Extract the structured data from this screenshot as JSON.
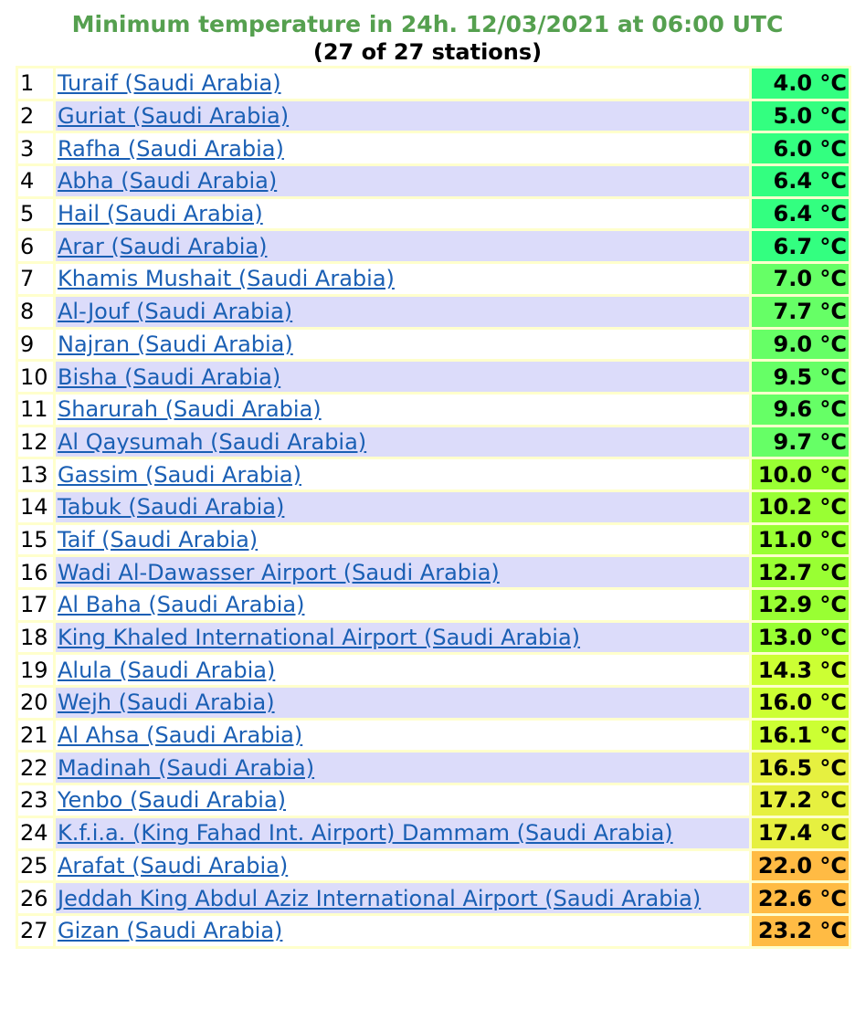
{
  "header": {
    "title": "Minimum temperature in 24h. 12/03/2021 at 06:00 UTC",
    "subtitle": "(27 of 27 stations)"
  },
  "rows": [
    {
      "rank": "1",
      "station": "Turaif (Saudi Arabia)",
      "value": "4.0 °C",
      "color": "#33ff80"
    },
    {
      "rank": "2",
      "station": "Guriat (Saudi Arabia)",
      "value": "5.0 °C",
      "color": "#33ff80"
    },
    {
      "rank": "3",
      "station": "Rafha (Saudi Arabia)",
      "value": "6.0 °C",
      "color": "#33ff80"
    },
    {
      "rank": "4",
      "station": "Abha (Saudi Arabia)",
      "value": "6.4 °C",
      "color": "#33ff80"
    },
    {
      "rank": "5",
      "station": "Hail (Saudi Arabia)",
      "value": "6.4 °C",
      "color": "#33ff80"
    },
    {
      "rank": "6",
      "station": "Arar (Saudi Arabia)",
      "value": "6.7 °C",
      "color": "#33ff80"
    },
    {
      "rank": "7",
      "station": "Khamis Mushait (Saudi Arabia)",
      "value": "7.0 °C",
      "color": "#66ff66"
    },
    {
      "rank": "8",
      "station": "Al-Jouf (Saudi Arabia)",
      "value": "7.7 °C",
      "color": "#66ff66"
    },
    {
      "rank": "9",
      "station": "Najran (Saudi Arabia)",
      "value": "9.0 °C",
      "color": "#66ff66"
    },
    {
      "rank": "10",
      "station": "Bisha (Saudi Arabia)",
      "value": "9.5 °C",
      "color": "#66ff66"
    },
    {
      "rank": "11",
      "station": "Sharurah (Saudi Arabia)",
      "value": "9.6 °C",
      "color": "#66ff66"
    },
    {
      "rank": "12",
      "station": "Al Qaysumah (Saudi Arabia)",
      "value": "9.7 °C",
      "color": "#66ff66"
    },
    {
      "rank": "13",
      "station": "Gassim (Saudi Arabia)",
      "value": "10.0 °C",
      "color": "#99ff33"
    },
    {
      "rank": "14",
      "station": "Tabuk (Saudi Arabia)",
      "value": "10.2 °C",
      "color": "#99ff33"
    },
    {
      "rank": "15",
      "station": "Taif (Saudi Arabia)",
      "value": "11.0 °C",
      "color": "#99ff33"
    },
    {
      "rank": "16",
      "station": "Wadi Al-Dawasser Airport (Saudi Arabia)",
      "value": "12.7 °C",
      "color": "#99ff33"
    },
    {
      "rank": "17",
      "station": "Al Baha (Saudi Arabia)",
      "value": "12.9 °C",
      "color": "#99ff33"
    },
    {
      "rank": "18",
      "station": "King Khaled International Airport (Saudi Arabia)",
      "value": "13.0 °C",
      "color": "#99ff33"
    },
    {
      "rank": "19",
      "station": "Alula (Saudi Arabia)",
      "value": "14.3 °C",
      "color": "#ccff33"
    },
    {
      "rank": "20",
      "station": "Wejh (Saudi Arabia)",
      "value": "16.0 °C",
      "color": "#ccff33"
    },
    {
      "rank": "21",
      "station": "Al Ahsa (Saudi Arabia)",
      "value": "16.1 °C",
      "color": "#ccff33"
    },
    {
      "rank": "22",
      "station": "Madinah (Saudi Arabia)",
      "value": "16.5 °C",
      "color": "#e6f040"
    },
    {
      "rank": "23",
      "station": "Yenbo (Saudi Arabia)",
      "value": "17.2 °C",
      "color": "#e6f040"
    },
    {
      "rank": "24",
      "station": "K.f.i.a. (King Fahad Int. Airport) Dammam (Saudi Arabia)",
      "value": "17.4 °C",
      "color": "#e6f040"
    },
    {
      "rank": "25",
      "station": "Arafat (Saudi Arabia)",
      "value": "22.0 °C",
      "color": "#ffbb44"
    },
    {
      "rank": "26",
      "station": "Jeddah King Abdul Aziz International Airport (Saudi Arabia)",
      "value": "22.6 °C",
      "color": "#ffbb44"
    },
    {
      "rank": "27",
      "station": "Gizan (Saudi Arabia)",
      "value": "23.2 °C",
      "color": "#ffbb44"
    }
  ]
}
